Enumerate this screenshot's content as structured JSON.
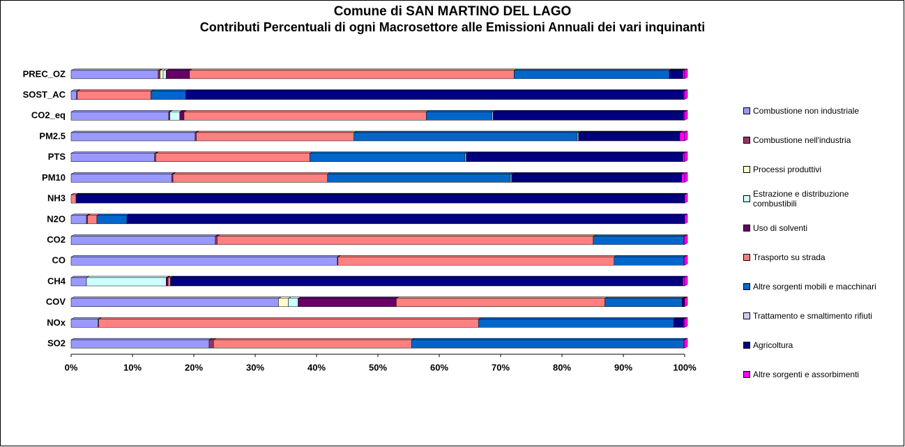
{
  "chart_data": {
    "type": "stacked-bar-horizontal",
    "title": "Comune di SAN MARTINO DEL LAGO",
    "subtitle": "Contributi Percentuali di ogni Macrosettore alle Emissioni Annuali dei vari inquinanti",
    "categories": [
      "PREC_OZ",
      "SOST_AC",
      "CO2_eq",
      "PM2.5",
      "PTS",
      "PM10",
      "NH3",
      "N2O",
      "CO2",
      "CO",
      "CH4",
      "COV",
      "NOx",
      "SO2"
    ],
    "series": [
      {
        "name": "Combustione non industriale",
        "color": "#9999ff",
        "values": [
          14.2,
          0.9,
          15.9,
          20.2,
          13.6,
          16.4,
          0,
          2.5,
          23.5,
          43.4,
          2.5,
          33.8,
          4.4,
          22.5
        ]
      },
      {
        "name": "Combustione nell'industria",
        "color": "#993366",
        "values": [
          0.3,
          0.1,
          0.2,
          0.2,
          0.2,
          0.2,
          0,
          0.2,
          0.3,
          0.1,
          0,
          0,
          0.1,
          0.7
        ]
      },
      {
        "name": "Processi produttivi",
        "color": "#ffffcc",
        "values": [
          0.5,
          0,
          0,
          0,
          0,
          0,
          0,
          0,
          0,
          0,
          0,
          1.6,
          0,
          0
        ]
      },
      {
        "name": "Estrazione e distribuzione combustibili",
        "color": "#ccffff",
        "values": [
          0.5,
          0,
          1.6,
          0,
          0,
          0,
          0,
          0,
          0,
          0,
          13.0,
          1.6,
          0,
          0
        ]
      },
      {
        "name": "Uso di solventi",
        "color": "#660066",
        "values": [
          3.8,
          0,
          0.7,
          0,
          0,
          0,
          0,
          0,
          0,
          0,
          0.3,
          16.0,
          0,
          0
        ]
      },
      {
        "name": "Trasporto su strada",
        "color": "#ff8080",
        "values": [
          52.9,
          12.0,
          39.5,
          25.7,
          25.1,
          25.2,
          0.8,
          1.5,
          61.3,
          45.0,
          0.4,
          34.0,
          61.9,
          32.3
        ]
      },
      {
        "name": "Altre sorgenti mobili e macchinari",
        "color": "#0066cc",
        "values": [
          25.3,
          5.7,
          10.7,
          36.4,
          25.3,
          29.8,
          0,
          4.9,
          14.7,
          11.3,
          0,
          12.6,
          31.8,
          44.3
        ]
      },
      {
        "name": "Trattamento e smaltimento rifiuti",
        "color": "#ccccff",
        "values": [
          0,
          0,
          0.2,
          0.2,
          0.2,
          0.2,
          0,
          0,
          0,
          0,
          0,
          0,
          0,
          0
        ]
      },
      {
        "name": "Agricoltura",
        "color": "#000080",
        "values": [
          2.2,
          81.1,
          31.0,
          16.5,
          35.3,
          27.7,
          99.2,
          90.9,
          0,
          0,
          83.5,
          0.3,
          1.6,
          0
        ]
      },
      {
        "name": "Altre sorgenti e assorbimenti",
        "color": "#ff00ff",
        "values": [
          0.3,
          0.2,
          0.2,
          0.8,
          0.3,
          0.5,
          0,
          0,
          0.2,
          0.2,
          0.3,
          0.1,
          0.2,
          0.2
        ]
      }
    ],
    "xlim": [
      0,
      100
    ],
    "xticks": [
      {
        "value": 0,
        "label": "0%"
      },
      {
        "value": 10,
        "label": "10%"
      },
      {
        "value": 20,
        "label": "20%"
      },
      {
        "value": 30,
        "label": "30%"
      },
      {
        "value": 40,
        "label": "40%"
      },
      {
        "value": 50,
        "label": "50%"
      },
      {
        "value": 60,
        "label": "60%"
      },
      {
        "value": 70,
        "label": "70%"
      },
      {
        "value": 80,
        "label": "80%"
      },
      {
        "value": 90,
        "label": "90%"
      },
      {
        "value": 100,
        "label": "100%"
      }
    ],
    "legend": "right"
  }
}
